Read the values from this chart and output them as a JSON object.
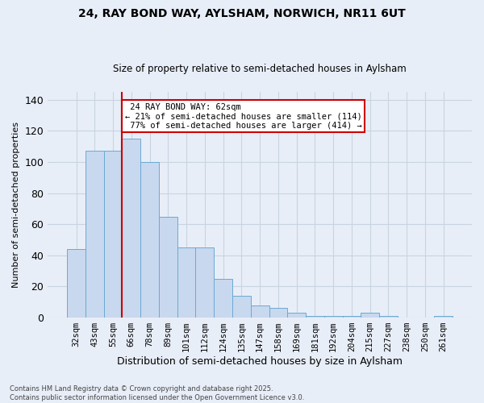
{
  "title_line1": "24, RAY BOND WAY, AYLSHAM, NORWICH, NR11 6UT",
  "title_line2": "Size of property relative to semi-detached houses in Aylsham",
  "xlabel": "Distribution of semi-detached houses by size in Aylsham",
  "ylabel": "Number of semi-detached properties",
  "categories": [
    "32sqm",
    "43sqm",
    "55sqm",
    "66sqm",
    "78sqm",
    "89sqm",
    "101sqm",
    "112sqm",
    "124sqm",
    "135sqm",
    "147sqm",
    "158sqm",
    "169sqm",
    "181sqm",
    "192sqm",
    "204sqm",
    "215sqm",
    "227sqm",
    "238sqm",
    "250sqm",
    "261sqm"
  ],
  "values": [
    44,
    107,
    107,
    115,
    100,
    65,
    45,
    45,
    25,
    14,
    8,
    6,
    3,
    1,
    1,
    1,
    3,
    1,
    0,
    0,
    1
  ],
  "bar_color": "#c8d8ee",
  "bar_edge_color": "#6aaad4",
  "grid_color": "#c8d4e0",
  "annotation_box_color": "#ffffff",
  "annotation_box_edge": "#cc0000",
  "property_line_color": "#cc0000",
  "property_label": "24 RAY BOND WAY: 62sqm",
  "pct_smaller": 21,
  "pct_smaller_count": 114,
  "pct_larger": 77,
  "pct_larger_count": 414,
  "red_line_x": 2.5,
  "ylim": [
    0,
    145
  ],
  "yticks": [
    0,
    20,
    40,
    60,
    80,
    100,
    120,
    140
  ],
  "footer_line1": "Contains HM Land Registry data © Crown copyright and database right 2025.",
  "footer_line2": "Contains public sector information licensed under the Open Government Licence v3.0.",
  "background_color": "#e8eef8",
  "plot_bg_color": "#e8eef8"
}
